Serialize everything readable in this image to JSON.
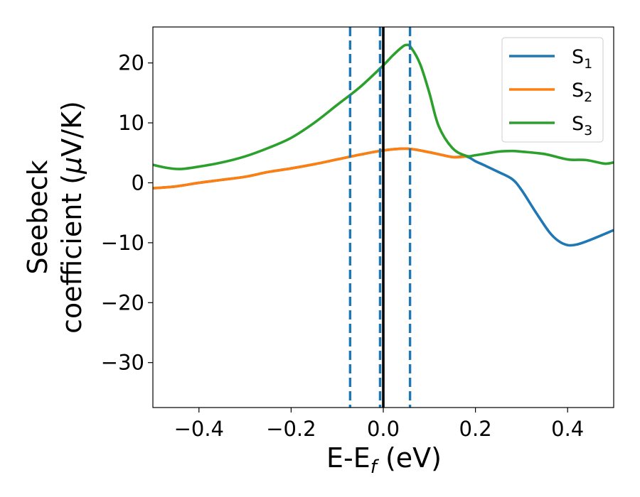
{
  "chart_data": {
    "type": "line",
    "xlabel": {
      "main": "E-E",
      "sub": "f",
      "unit": " (eV)"
    },
    "ylabel": {
      "line1": "Seebeck",
      "line2": "coefficient  (",
      "mu": "μ",
      "line2_end": "V/K)"
    },
    "xlim": [
      -0.5,
      0.5
    ],
    "ylim": [
      -37.5,
      26
    ],
    "x_ticks": [
      -0.4,
      -0.2,
      0.0,
      0.2,
      0.4
    ],
    "x_tick_labels": [
      "−0.4",
      "−0.2",
      "0.0",
      "0.2",
      "0.4"
    ],
    "y_ticks": [
      -30,
      -20,
      -10,
      0,
      10,
      20
    ],
    "y_tick_labels": [
      "−30",
      "−20",
      "−10",
      "0",
      "10",
      "20"
    ],
    "grid": false,
    "legend": "top-right",
    "vertical_lines": [
      {
        "x": -0.072,
        "style": "dashed",
        "color": "#1f77b4"
      },
      {
        "x": -0.007,
        "style": "dashed",
        "color": "#1f77b4"
      },
      {
        "x": 0.058,
        "style": "dashed",
        "color": "#1f77b4"
      },
      {
        "x": 0.0,
        "style": "solid",
        "color": "#000000"
      }
    ],
    "series": [
      {
        "name": "S",
        "sub": "1",
        "color": "#1f77b4",
        "x": [
          -0.5,
          -0.45,
          -0.4,
          -0.35,
          -0.3,
          -0.25,
          -0.2,
          -0.15,
          -0.1,
          -0.05,
          0.0,
          0.05,
          0.1,
          0.15,
          0.18,
          0.2,
          0.22,
          0.25,
          0.28,
          0.3,
          0.33,
          0.36,
          0.38,
          0.4,
          0.42,
          0.45,
          0.5
        ],
        "y": [
          -0.9,
          -0.6,
          0.0,
          0.5,
          1.0,
          1.8,
          2.4,
          3.1,
          3.9,
          4.7,
          5.4,
          5.7,
          5.1,
          4.3,
          4.4,
          3.6,
          2.9,
          1.8,
          0.6,
          -1.2,
          -4.8,
          -8.2,
          -9.7,
          -10.4,
          -10.3,
          -9.5,
          -7.9
        ]
      },
      {
        "name": "S",
        "sub": "2",
        "color": "#ff7f0e",
        "x": [
          -0.5,
          -0.45,
          -0.4,
          -0.35,
          -0.3,
          -0.25,
          -0.2,
          -0.15,
          -0.1,
          -0.05,
          0.0,
          0.05,
          0.1,
          0.15,
          0.18
        ],
        "y": [
          -0.9,
          -0.6,
          0.0,
          0.5,
          1.0,
          1.8,
          2.4,
          3.1,
          3.9,
          4.7,
          5.4,
          5.7,
          5.1,
          4.3,
          4.4
        ]
      },
      {
        "name": "S",
        "sub": "3",
        "color": "#2ca02c",
        "x": [
          -0.5,
          -0.47,
          -0.44,
          -0.4,
          -0.35,
          -0.3,
          -0.25,
          -0.2,
          -0.15,
          -0.1,
          -0.05,
          0.0,
          0.02,
          0.04,
          0.05,
          0.06,
          0.08,
          0.1,
          0.12,
          0.15,
          0.18,
          0.2,
          0.25,
          0.28,
          0.3,
          0.35,
          0.4,
          0.44,
          0.48,
          0.5
        ],
        "y": [
          3.0,
          2.5,
          2.3,
          2.7,
          3.4,
          4.4,
          5.8,
          7.5,
          10.0,
          13.0,
          16.0,
          19.6,
          21.2,
          22.6,
          23.0,
          22.6,
          19.8,
          15.0,
          9.5,
          5.8,
          4.5,
          4.6,
          5.2,
          5.3,
          5.2,
          4.8,
          3.9,
          3.8,
          3.2,
          3.4
        ]
      }
    ]
  }
}
